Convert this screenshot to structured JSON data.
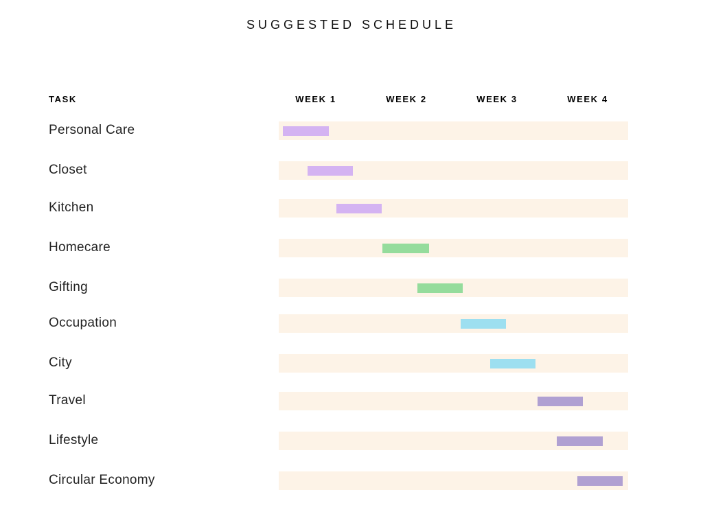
{
  "title": "SUGGESTED SCHEDULE",
  "headers": {
    "task": "TASK",
    "weeks": [
      "WEEK 1",
      "WEEK 2",
      "WEEK 3",
      "WEEK 4"
    ]
  },
  "colors": {
    "track": "#fdf3e7",
    "purple": "#d4b3f2",
    "green": "#95dc9c",
    "cyan": "#9ddff0",
    "lavender": "#b0a0d2"
  },
  "chart_data": {
    "type": "gantt",
    "title": "SUGGESTED SCHEDULE",
    "xlabel": "",
    "ylabel": "TASK",
    "x_categories": [
      "WEEK 1",
      "WEEK 2",
      "WEEK 3",
      "WEEK 4"
    ],
    "x_range_weeks": [
      0,
      4
    ],
    "tasks": [
      {
        "name": "Personal Care",
        "start_week": 0.05,
        "end_week": 0.57,
        "color": "purple"
      },
      {
        "name": "Closet",
        "start_week": 0.33,
        "end_week": 0.85,
        "color": "purple"
      },
      {
        "name": "Kitchen",
        "start_week": 0.66,
        "end_week": 1.18,
        "color": "purple"
      },
      {
        "name": "Homecare",
        "start_week": 1.19,
        "end_week": 1.72,
        "color": "green"
      },
      {
        "name": "Gifting",
        "start_week": 1.59,
        "end_week": 2.11,
        "color": "green"
      },
      {
        "name": "Occupation",
        "start_week": 2.08,
        "end_week": 2.6,
        "color": "cyan"
      },
      {
        "name": "City",
        "start_week": 2.42,
        "end_week": 2.94,
        "color": "cyan"
      },
      {
        "name": "Travel",
        "start_week": 2.96,
        "end_week": 3.48,
        "color": "lavender"
      },
      {
        "name": "Lifestyle",
        "start_week": 3.18,
        "end_week": 3.71,
        "color": "lavender"
      },
      {
        "name": "Circular Economy",
        "start_week": 3.42,
        "end_week": 3.94,
        "color": "lavender"
      }
    ],
    "grid": false,
    "legend": "none"
  }
}
